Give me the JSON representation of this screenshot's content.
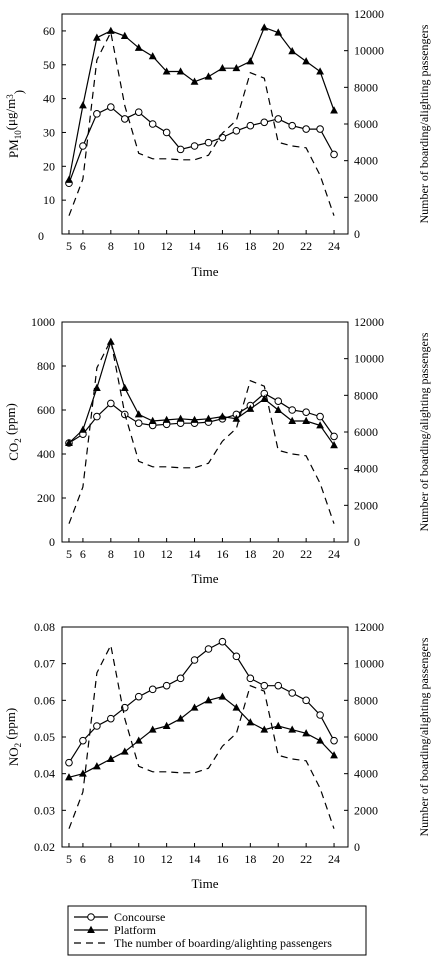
{
  "chart_data": [
    {
      "type": "line",
      "ylabel": "PM10(μg/m³)",
      "ylabel_main": "PM",
      "ylabel_sub": "10",
      "ylabel_unit": "(μg/m",
      "ylabel_sup": "3",
      "ylabel_close": ")",
      "xlabel": "Time",
      "y2label": "Number of boarding/alighting passengers",
      "xlim": [
        4.5,
        25
      ],
      "ylim": [
        0,
        65
      ],
      "y2lim": [
        0,
        12000
      ],
      "xticks": [
        "5",
        "6",
        "8",
        "10",
        "12",
        "14",
        "16",
        "18",
        "20",
        "22",
        "24"
      ],
      "xtick_values": [
        5,
        6,
        8,
        10,
        12,
        14,
        16,
        18,
        20,
        22,
        24
      ],
      "yticks": [
        10,
        20,
        30,
        40,
        50,
        60
      ],
      "y2ticks": [
        0,
        2000,
        4000,
        6000,
        8000,
        10000,
        12000
      ],
      "zero_label": "0",
      "grid": false,
      "series": [
        {
          "name": "Concourse",
          "axis": "left",
          "x": [
            5,
            6,
            7,
            8,
            9,
            10,
            11,
            12,
            13,
            14,
            15,
            16,
            17,
            18,
            19,
            20,
            21,
            22,
            23,
            24
          ],
          "y": [
            15,
            26,
            35.5,
            37.5,
            34,
            36,
            32.5,
            30,
            25,
            26,
            27,
            28.5,
            30.5,
            32,
            33,
            34,
            32,
            31,
            31,
            23.5
          ]
        },
        {
          "name": "Platform",
          "axis": "left",
          "x": [
            5,
            6,
            7,
            8,
            9,
            10,
            11,
            12,
            13,
            14,
            15,
            16,
            17,
            18,
            19,
            20,
            21,
            22,
            23,
            24
          ],
          "y": [
            16,
            38,
            58,
            60,
            58.5,
            55,
            52.5,
            48,
            48,
            45,
            46.5,
            49,
            49,
            51,
            61,
            59.5,
            54,
            51,
            48,
            36.5
          ]
        },
        {
          "name": "The number of boarding/alighting passengers",
          "axis": "right",
          "x": [
            5,
            6,
            7,
            8,
            9,
            10,
            11,
            12,
            13,
            14,
            15,
            16,
            17,
            18,
            19,
            20,
            21,
            22,
            23,
            24
          ],
          "y": [
            1000,
            3000,
            9500,
            11000,
            7000,
            4400,
            4100,
            4100,
            4050,
            4050,
            4300,
            5500,
            6200,
            8800,
            8500,
            5000,
            4800,
            4700,
            3200,
            1000
          ]
        }
      ]
    },
    {
      "type": "line",
      "ylabel": "CO2 (ppm)",
      "ylabel_main": "CO",
      "ylabel_sub": "2",
      "ylabel_unit": " (ppm)",
      "xlabel": "Time",
      "y2label": "Number of boarding/alighting passengers",
      "xlim": [
        4.5,
        25
      ],
      "ylim": [
        0,
        1000
      ],
      "y2lim": [
        0,
        12000
      ],
      "xticks": [
        "5",
        "6",
        "8",
        "10",
        "12",
        "14",
        "16",
        "18",
        "20",
        "22",
        "24"
      ],
      "xtick_values": [
        5,
        6,
        8,
        10,
        12,
        14,
        16,
        18,
        20,
        22,
        24
      ],
      "yticks": [
        0,
        200,
        400,
        600,
        800,
        1000
      ],
      "y2ticks": [
        0,
        2000,
        4000,
        6000,
        8000,
        10000,
        12000
      ],
      "grid": false,
      "series": [
        {
          "name": "Concourse",
          "axis": "left",
          "x": [
            5,
            6,
            7,
            8,
            9,
            10,
            11,
            12,
            13,
            14,
            15,
            16,
            17,
            18,
            19,
            20,
            21,
            22,
            23,
            24
          ],
          "y": [
            450,
            490,
            570,
            630,
            580,
            540,
            530,
            535,
            540,
            540,
            545,
            560,
            580,
            620,
            675,
            640,
            600,
            590,
            570,
            480
          ]
        },
        {
          "name": "Platform",
          "axis": "left",
          "x": [
            5,
            6,
            7,
            8,
            9,
            10,
            11,
            12,
            13,
            14,
            15,
            16,
            17,
            18,
            19,
            20,
            21,
            22,
            23,
            24
          ],
          "y": [
            450,
            510,
            700,
            910,
            700,
            580,
            550,
            555,
            560,
            555,
            560,
            570,
            560,
            605,
            650,
            600,
            550,
            550,
            530,
            440
          ]
        },
        {
          "name": "The number of boarding/alighting passengers",
          "axis": "right",
          "x": [
            5,
            6,
            7,
            8,
            9,
            10,
            11,
            12,
            13,
            14,
            15,
            16,
            17,
            18,
            19,
            20,
            21,
            22,
            23,
            24
          ],
          "y": [
            1000,
            3000,
            9500,
            11000,
            7000,
            4400,
            4100,
            4100,
            4050,
            4050,
            4300,
            5500,
            6200,
            8800,
            8500,
            5000,
            4800,
            4700,
            3200,
            1000
          ]
        }
      ]
    },
    {
      "type": "line",
      "ylabel": "NO2 (ppm)",
      "ylabel_main": "NO",
      "ylabel_sub": "2",
      "ylabel_unit": " (ppm)",
      "xlabel": "Time",
      "y2label": "Number of boarding/alighting passengers",
      "xlim": [
        4.5,
        25
      ],
      "ylim": [
        0.02,
        0.08
      ],
      "y2lim": [
        0,
        12000
      ],
      "xticks": [
        "5",
        "6",
        "8",
        "10",
        "12",
        "14",
        "16",
        "18",
        "20",
        "22",
        "24"
      ],
      "xtick_values": [
        5,
        6,
        8,
        10,
        12,
        14,
        16,
        18,
        20,
        22,
        24
      ],
      "yticks": [
        0.02,
        0.03,
        0.04,
        0.05,
        0.06,
        0.07,
        0.08
      ],
      "ytick_labels": [
        "0.02",
        "0.03",
        "0.04",
        "0.05",
        "0.06",
        "0.07",
        "0.08"
      ],
      "y2ticks": [
        0,
        2000,
        4000,
        6000,
        8000,
        10000,
        12000
      ],
      "grid": false,
      "series": [
        {
          "name": "Concourse",
          "axis": "left",
          "x": [
            5,
            6,
            7,
            8,
            9,
            10,
            11,
            12,
            13,
            14,
            15,
            16,
            17,
            18,
            19,
            20,
            21,
            22,
            23,
            24
          ],
          "y": [
            0.043,
            0.049,
            0.053,
            0.055,
            0.058,
            0.061,
            0.063,
            0.064,
            0.066,
            0.071,
            0.074,
            0.076,
            0.072,
            0.066,
            0.064,
            0.064,
            0.062,
            0.06,
            0.056,
            0.049
          ]
        },
        {
          "name": "Platform",
          "axis": "left",
          "x": [
            5,
            6,
            7,
            8,
            9,
            10,
            11,
            12,
            13,
            14,
            15,
            16,
            17,
            18,
            19,
            20,
            21,
            22,
            23,
            24
          ],
          "y": [
            0.039,
            0.04,
            0.042,
            0.044,
            0.046,
            0.049,
            0.052,
            0.053,
            0.055,
            0.058,
            0.06,
            0.061,
            0.058,
            0.054,
            0.052,
            0.053,
            0.052,
            0.051,
            0.049,
            0.045
          ]
        },
        {
          "name": "The number of boarding/alighting passengers",
          "axis": "right",
          "x": [
            5,
            6,
            7,
            8,
            9,
            10,
            11,
            12,
            13,
            14,
            15,
            16,
            17,
            18,
            19,
            20,
            21,
            22,
            23,
            24
          ],
          "y": [
            1000,
            3000,
            9500,
            11000,
            7000,
            4400,
            4100,
            4100,
            4050,
            4050,
            4300,
            5500,
            6200,
            8800,
            8500,
            5000,
            4800,
            4700,
            3200,
            1000
          ]
        }
      ]
    }
  ],
  "legend": {
    "placement": "bottom",
    "items": [
      {
        "label": "Concourse",
        "marker": "open-circle",
        "line": "solid"
      },
      {
        "label": "Platform",
        "marker": "filled-triangle",
        "line": "solid"
      },
      {
        "label": "The number of boarding/alighting passengers",
        "marker": "none",
        "line": "dashed"
      }
    ]
  }
}
